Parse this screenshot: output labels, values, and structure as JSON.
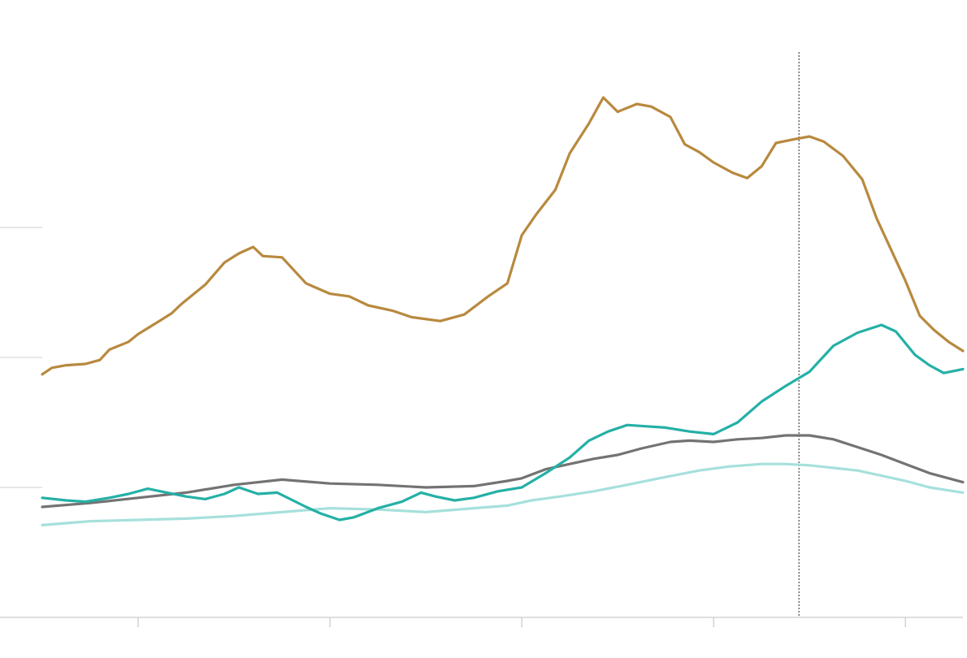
{
  "chart_data": {
    "type": "line",
    "title": "",
    "xlabel": "",
    "ylabel": "",
    "ylim": [
      0,
      4
    ],
    "yticks": [
      1,
      2,
      3
    ],
    "grid": true,
    "legend": "none",
    "marker_x": 157.8,
    "x_range": [
      0,
      192
    ],
    "x_ticks": [
      20,
      60,
      100,
      140,
      180
    ],
    "series": [
      {
        "color": "#b8893e",
        "points": [
          [
            0,
            1.87
          ],
          [
            2,
            1.92
          ],
          [
            5,
            1.94
          ],
          [
            9,
            1.95
          ],
          [
            12,
            1.98
          ],
          [
            14,
            2.06
          ],
          [
            18,
            2.12
          ],
          [
            20,
            2.18
          ],
          [
            24,
            2.27
          ],
          [
            27,
            2.34
          ],
          [
            29,
            2.41
          ],
          [
            34,
            2.56
          ],
          [
            38,
            2.73
          ],
          [
            41,
            2.8
          ],
          [
            44,
            2.85
          ],
          [
            46,
            2.78
          ],
          [
            50,
            2.77
          ],
          [
            55,
            2.57
          ],
          [
            60,
            2.49
          ],
          [
            64,
            2.47
          ],
          [
            68,
            2.4
          ],
          [
            73,
            2.36
          ],
          [
            77,
            2.31
          ],
          [
            83,
            2.28
          ],
          [
            88,
            2.33
          ],
          [
            93,
            2.47
          ],
          [
            97,
            2.57
          ],
          [
            100,
            2.94
          ],
          [
            103,
            3.1
          ],
          [
            107,
            3.29
          ],
          [
            110,
            3.57
          ],
          [
            114,
            3.8
          ],
          [
            117,
            4.0
          ],
          [
            120,
            3.89
          ],
          [
            124,
            3.95
          ],
          [
            127,
            3.93
          ],
          [
            131,
            3.85
          ],
          [
            134,
            3.64
          ],
          [
            137,
            3.58
          ],
          [
            140,
            3.5
          ],
          [
            144,
            3.42
          ],
          [
            147,
            3.38
          ],
          [
            150,
            3.47
          ],
          [
            153,
            3.65
          ],
          [
            157,
            3.68
          ],
          [
            160,
            3.7
          ],
          [
            163,
            3.66
          ],
          [
            167,
            3.55
          ],
          [
            171,
            3.37
          ],
          [
            174,
            3.07
          ],
          [
            177,
            2.83
          ],
          [
            180,
            2.59
          ],
          [
            183,
            2.32
          ],
          [
            186,
            2.21
          ],
          [
            189,
            2.12
          ],
          [
            192,
            2.05
          ]
        ]
      },
      {
        "color": "#737373",
        "points": [
          [
            0,
            0.85
          ],
          [
            10,
            0.88
          ],
          [
            20,
            0.92
          ],
          [
            30,
            0.96
          ],
          [
            40,
            1.02
          ],
          [
            50,
            1.06
          ],
          [
            60,
            1.03
          ],
          [
            70,
            1.02
          ],
          [
            80,
            1.0
          ],
          [
            90,
            1.01
          ],
          [
            97,
            1.05
          ],
          [
            100,
            1.07
          ],
          [
            105,
            1.14
          ],
          [
            110,
            1.18
          ],
          [
            115,
            1.22
          ],
          [
            120,
            1.25
          ],
          [
            125,
            1.3
          ],
          [
            131,
            1.35
          ],
          [
            135,
            1.36
          ],
          [
            140,
            1.35
          ],
          [
            145,
            1.37
          ],
          [
            150,
            1.38
          ],
          [
            155,
            1.4
          ],
          [
            160,
            1.4
          ],
          [
            165,
            1.37
          ],
          [
            170,
            1.31
          ],
          [
            175,
            1.25
          ],
          [
            180,
            1.18
          ],
          [
            185,
            1.11
          ],
          [
            192,
            1.04
          ]
        ]
      },
      {
        "color": "#24b0a6",
        "points": [
          [
            0,
            0.92
          ],
          [
            5,
            0.9
          ],
          [
            9,
            0.89
          ],
          [
            14,
            0.92
          ],
          [
            18,
            0.95
          ],
          [
            22,
            0.99
          ],
          [
            26,
            0.96
          ],
          [
            30,
            0.93
          ],
          [
            34,
            0.91
          ],
          [
            38,
            0.95
          ],
          [
            41,
            1.0
          ],
          [
            45,
            0.95
          ],
          [
            49,
            0.96
          ],
          [
            55,
            0.85
          ],
          [
            58,
            0.8
          ],
          [
            62,
            0.75
          ],
          [
            65,
            0.77
          ],
          [
            70,
            0.84
          ],
          [
            75,
            0.89
          ],
          [
            79,
            0.96
          ],
          [
            82,
            0.93
          ],
          [
            86,
            0.9
          ],
          [
            90,
            0.92
          ],
          [
            95,
            0.97
          ],
          [
            100,
            1.0
          ],
          [
            105,
            1.11
          ],
          [
            110,
            1.23
          ],
          [
            114,
            1.36
          ],
          [
            118,
            1.43
          ],
          [
            122,
            1.48
          ],
          [
            126,
            1.47
          ],
          [
            130,
            1.46
          ],
          [
            135,
            1.43
          ],
          [
            140,
            1.41
          ],
          [
            145,
            1.5
          ],
          [
            150,
            1.66
          ],
          [
            155,
            1.78
          ],
          [
            160,
            1.89
          ],
          [
            165,
            2.09
          ],
          [
            170,
            2.19
          ],
          [
            175,
            2.25
          ],
          [
            178,
            2.2
          ],
          [
            182,
            2.02
          ],
          [
            185,
            1.94
          ],
          [
            188,
            1.88
          ],
          [
            192,
            1.91
          ]
        ]
      },
      {
        "color": "#a6e0dc",
        "points": [
          [
            0,
            0.71
          ],
          [
            10,
            0.74
          ],
          [
            20,
            0.75
          ],
          [
            30,
            0.76
          ],
          [
            40,
            0.78
          ],
          [
            50,
            0.81
          ],
          [
            60,
            0.84
          ],
          [
            70,
            0.83
          ],
          [
            80,
            0.81
          ],
          [
            90,
            0.84
          ],
          [
            97,
            0.86
          ],
          [
            102,
            0.9
          ],
          [
            108,
            0.93
          ],
          [
            115,
            0.97
          ],
          [
            122,
            1.02
          ],
          [
            130,
            1.08
          ],
          [
            137,
            1.13
          ],
          [
            143,
            1.16
          ],
          [
            150,
            1.18
          ],
          [
            155,
            1.18
          ],
          [
            160,
            1.17
          ],
          [
            165,
            1.15
          ],
          [
            170,
            1.13
          ],
          [
            175,
            1.09
          ],
          [
            180,
            1.05
          ],
          [
            185,
            1.0
          ],
          [
            192,
            0.96
          ]
        ]
      }
    ]
  }
}
